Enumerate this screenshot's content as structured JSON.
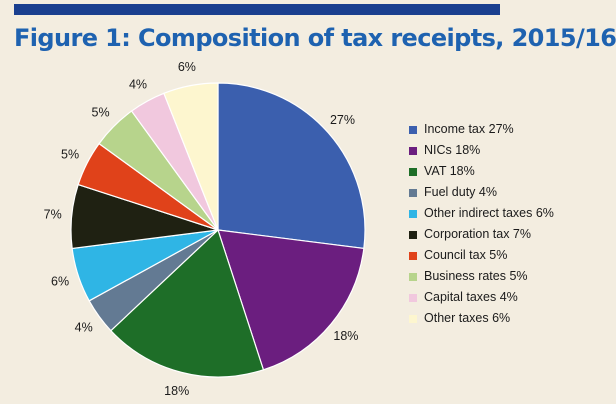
{
  "chart_data": {
    "type": "pie",
    "title": "Figure 1: Composition of tax receipts, 2015/16",
    "start_angle_deg": 0,
    "direction": "clockwise",
    "legend_position": "right",
    "slices": [
      {
        "label": "Income tax 27%",
        "value": 27,
        "data_label": "27%",
        "color": "#3b5fae"
      },
      {
        "label": "NICs 18%",
        "value": 18,
        "data_label": "18%",
        "color": "#6b1e7f"
      },
      {
        "label": "VAT 18%",
        "value": 18,
        "data_label": "18%",
        "color": "#1e6e28"
      },
      {
        "label": "Fuel duty 4%",
        "value": 4,
        "data_label": "4%",
        "color": "#637a93"
      },
      {
        "label": "Other indirect taxes 6%",
        "value": 6,
        "data_label": "6%",
        "color": "#2fb5e5"
      },
      {
        "label": "Corporation tax 7%",
        "value": 7,
        "data_label": "7%",
        "color": "#1f2112"
      },
      {
        "label": "Council tax 5%",
        "value": 5,
        "data_label": "5%",
        "color": "#e0421a"
      },
      {
        "label": "Business rates 5%",
        "value": 5,
        "data_label": "5%",
        "color": "#b7d48c"
      },
      {
        "label": "Capital taxes 4%",
        "value": 4,
        "data_label": "4%",
        "color": "#f1c8de"
      },
      {
        "label": "Other taxes 6%",
        "value": 6,
        "data_label": "6%",
        "color": "#fdf6cf"
      }
    ]
  }
}
